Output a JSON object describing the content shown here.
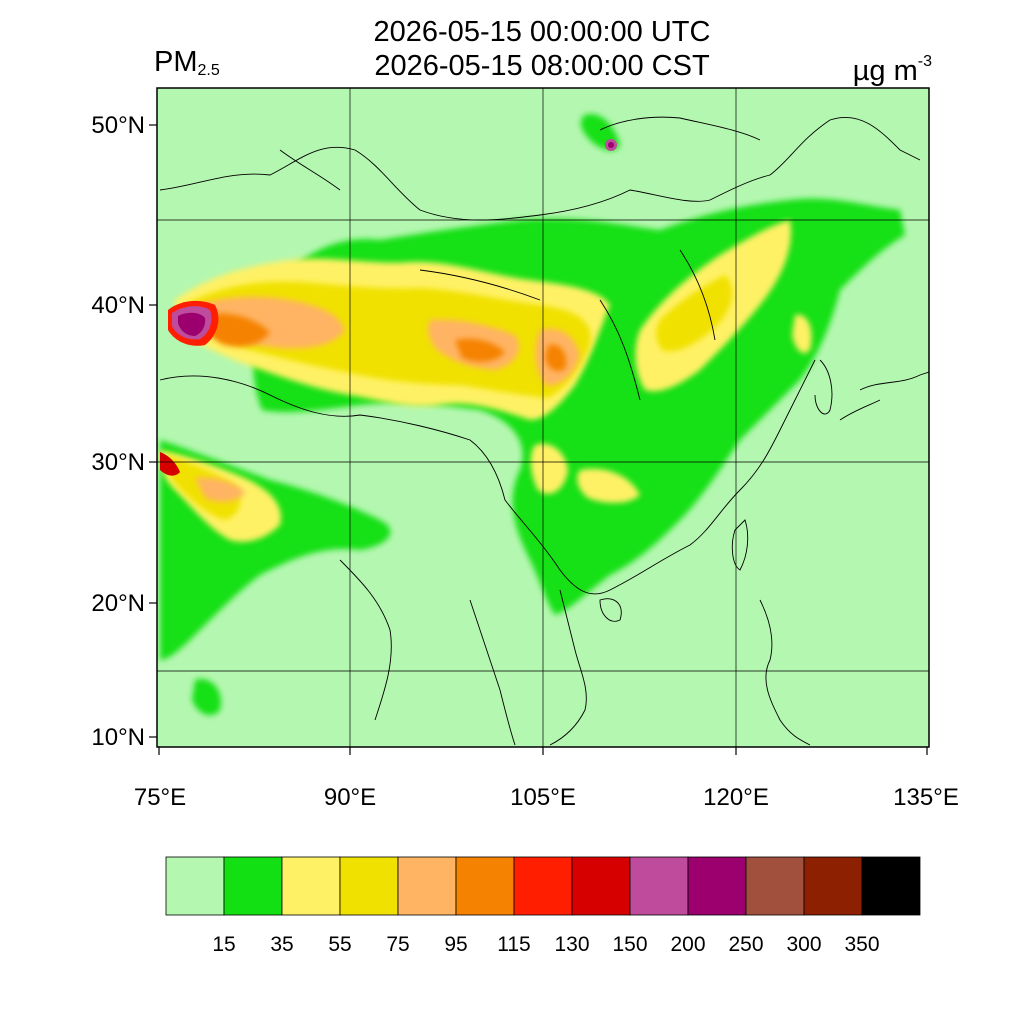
{
  "title": {
    "line1": "2026-05-15 00:00:00 UTC",
    "line2": "2026-05-15 08:00:00 CST"
  },
  "variable": {
    "name": "PM",
    "subscript": "2.5"
  },
  "unit": {
    "base": "µg m",
    "exponent": "-3"
  },
  "axes": {
    "lon_ticks": [
      "75°E",
      "90°E",
      "105°E",
      "120°E",
      "135°E"
    ],
    "lat_ticks": [
      "50°N",
      "40°N",
      "30°N",
      "20°N",
      "10°N"
    ]
  },
  "colorbar": {
    "colors": [
      "#b4f7b0",
      "#12e012",
      "#fff165",
      "#f0e100",
      "#ffb464",
      "#f58200",
      "#ff1e00",
      "#d70000",
      "#be4b9b",
      "#9b006e",
      "#a0503c",
      "#8c2000",
      "#000000"
    ],
    "labels": [
      "15",
      "35",
      "55",
      "75",
      "95",
      "115",
      "130",
      "150",
      "200",
      "250",
      "300",
      "350"
    ]
  }
}
